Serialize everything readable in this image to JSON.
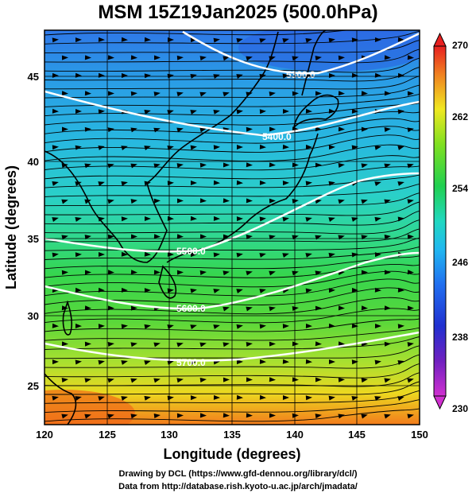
{
  "title": "MSM 15Z19Jan2025 (500.0hPa)",
  "x_axis": {
    "label": "Longitude (degrees)",
    "min": 120,
    "max": 150,
    "ticks": [
      "120",
      "125",
      "130",
      "135",
      "140",
      "145",
      "150"
    ]
  },
  "y_axis": {
    "label": "Latitude  (degrees)",
    "min": 22.4,
    "max": 47.6,
    "ticks": [
      "25",
      "30",
      "35",
      "40",
      "45"
    ]
  },
  "colorbar": {
    "min": 230,
    "max": 270,
    "ticks": [
      "230",
      "238",
      "246",
      "254",
      "262",
      "270"
    ]
  },
  "contours": [
    {
      "label": "5300.0"
    },
    {
      "label": "5400.0"
    },
    {
      "label": "5500.0"
    },
    {
      "label": "5600.0"
    },
    {
      "label": "5700.0"
    }
  ],
  "credits": {
    "line1": "Drawing by DCL (https://www.gfd-dennou.org/library/dcl/)",
    "line2": "Data from http://database.rish.kyoto-u.ac.jp/arch/jmadata/"
  },
  "colors": {
    "cold": "#1e5fe0",
    "mid": "#22c8c8",
    "warm": "#40d040",
    "hot": "#f08020"
  }
}
